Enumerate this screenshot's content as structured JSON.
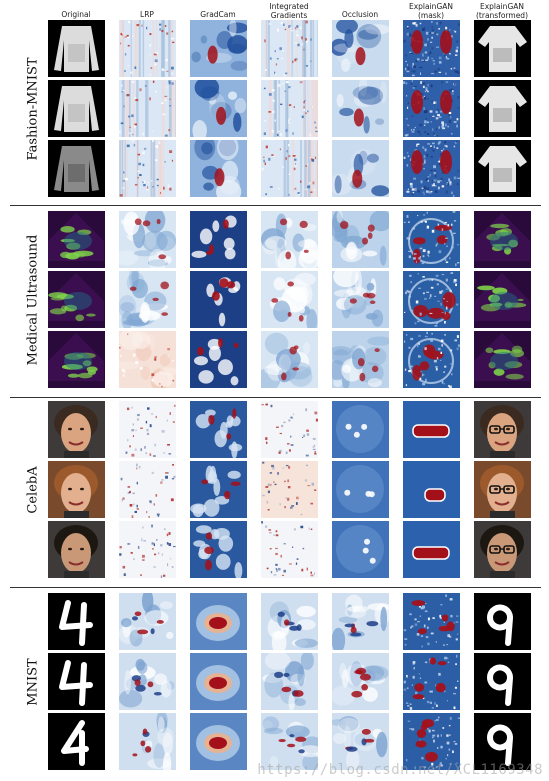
{
  "columns": [
    {
      "label": "Original"
    },
    {
      "label": "LRP"
    },
    {
      "label": "GradCam"
    },
    {
      "label": "Integrated\nGradients"
    },
    {
      "label": "Occlusion"
    },
    {
      "label": "ExplainGAN\n(mask)"
    },
    {
      "label": "ExplainGAN\n(transformed)"
    }
  ],
  "sections": [
    {
      "label": "Fashion-MNIST",
      "theme": "fashion"
    },
    {
      "label": "Medical Ultrasound",
      "theme": "ultrasound"
    },
    {
      "label": "CelebA",
      "theme": "celeba"
    },
    {
      "label": "MNIST",
      "theme": "mnist"
    }
  ],
  "watermark": "https://blog.csdn.net/XCL1169348",
  "colors": {
    "heat_low": "#1f4e9c",
    "heat_mid": "#f2f6fb",
    "heat_high": "#a3101a",
    "ultrasound_bg": "#3b0f4f",
    "ultrasound_signal": "#7ed24a"
  }
}
